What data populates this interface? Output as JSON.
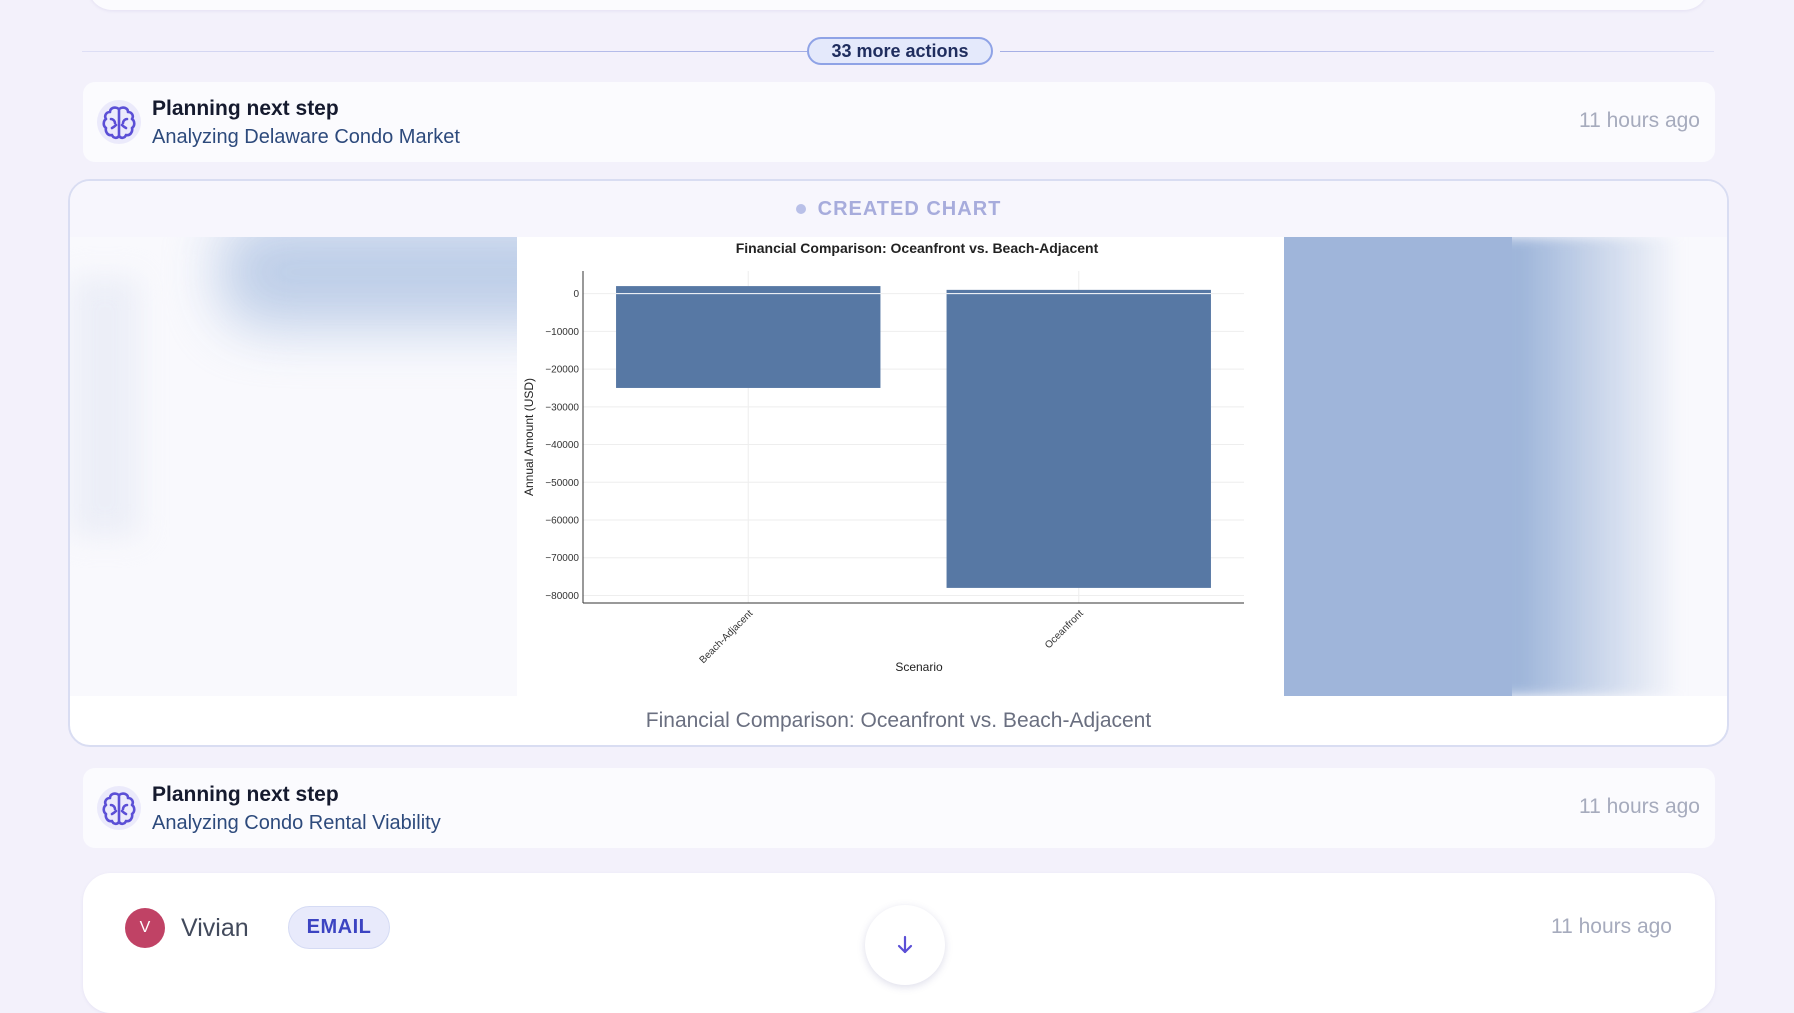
{
  "timeline": {
    "more_actions": "33 more actions"
  },
  "steps": [
    {
      "title": "Planning next step",
      "subtitle": "Analyzing Delaware Condo Market",
      "time": "11 hours ago",
      "icon": "brain-icon"
    },
    {
      "title": "Planning next step",
      "subtitle": "Analyzing Condo Rental Viability",
      "time": "11 hours ago",
      "icon": "brain-icon"
    }
  ],
  "chart_card": {
    "header": "CREATED CHART",
    "caption": "Financial Comparison: Oceanfront vs. Beach-Adjacent"
  },
  "chart_data": {
    "type": "bar",
    "title": "Financial Comparison: Oceanfront vs. Beach-Adjacent",
    "xlabel": "Scenario",
    "ylabel": "Annual Amount (USD)",
    "categories": [
      "Beach-Adjacent",
      "Oceanfront"
    ],
    "series": [
      {
        "values": [
          2000,
          1000
        ]
      },
      {
        "values": [
          -25000,
          -78000
        ]
      }
    ],
    "ylim": [
      -82000,
      6000
    ],
    "yticks": [
      0,
      -10000,
      -20000,
      -30000,
      -40000,
      -50000,
      -60000,
      -70000,
      -80000
    ],
    "ytick_labels": [
      "0",
      "−10000",
      "−20000",
      "−30000",
      "−40000",
      "−50000",
      "−60000",
      "−70000",
      "−80000"
    ],
    "bar_color": "#5778a4",
    "grid": true
  },
  "message": {
    "avatar_initial": "V",
    "sender": "Vivian",
    "badge": "EMAIL",
    "time": "11 hours ago",
    "avatar_color": "#c04265"
  },
  "scroll_button": {
    "icon": "arrow-down-icon"
  }
}
